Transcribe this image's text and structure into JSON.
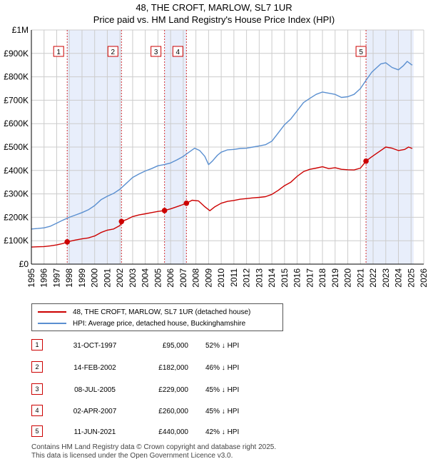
{
  "title": "48, THE CROFT, MARLOW, SL7 1UR",
  "subtitle": "Price paid vs. HM Land Registry's House Price Index (HPI)",
  "colors": {
    "property": "#cc0000",
    "hpi": "#5a8fd0",
    "shade": "#e8eefb",
    "grid": "#cccccc"
  },
  "chart_data": {
    "type": "line",
    "xlim": [
      1995,
      2026
    ],
    "ylim": [
      0,
      1000000
    ],
    "y_ticks": [
      0,
      100000,
      200000,
      300000,
      400000,
      500000,
      600000,
      700000,
      800000,
      900000,
      1000000
    ],
    "y_tick_labels": [
      "£0",
      "£100K",
      "£200K",
      "£300K",
      "£400K",
      "£500K",
      "£600K",
      "£700K",
      "£800K",
      "£900K",
      "£1M"
    ],
    "x_tick_labels": [
      "1995",
      "1996",
      "1997",
      "1998",
      "1999",
      "2000",
      "2001",
      "2002",
      "2003",
      "2004",
      "2005",
      "2006",
      "2007",
      "2008",
      "2009",
      "2010",
      "2011",
      "2012",
      "2013",
      "2014",
      "2015",
      "2016",
      "2017",
      "2018",
      "2019",
      "2020",
      "2021",
      "2022",
      "2023",
      "2024",
      "2025",
      "2026"
    ],
    "grid": true,
    "shaded_ranges": [
      [
        1997.83,
        2002.12
      ],
      [
        2005.52,
        2007.25
      ],
      [
        2021.44,
        2025.2
      ]
    ],
    "series": [
      {
        "name": "48, THE CROFT, MARLOW, SL7 1UR (detached house)",
        "x": [
          1995.0,
          1995.5,
          1996.0,
          1996.5,
          1997.0,
          1997.5,
          1997.83,
          1998.5,
          1999.0,
          1999.5,
          2000.0,
          2000.5,
          2001.0,
          2001.5,
          2002.0,
          2002.12,
          2002.5,
          2003.0,
          2003.5,
          2004.0,
          2004.5,
          2005.0,
          2005.52,
          2006.0,
          2006.5,
          2007.0,
          2007.25,
          2007.7,
          2008.2,
          2008.7,
          2009.1,
          2009.5,
          2010.0,
          2010.5,
          2011.0,
          2011.5,
          2012.0,
          2012.5,
          2013.0,
          2013.5,
          2014.0,
          2014.5,
          2015.0,
          2015.5,
          2016.0,
          2016.5,
          2017.0,
          2017.5,
          2018.0,
          2018.5,
          2019.0,
          2019.5,
          2020.0,
          2020.5,
          2021.0,
          2021.44,
          2021.8,
          2022.2,
          2022.6,
          2023.0,
          2023.5,
          2024.0,
          2024.5,
          2024.8,
          2025.1
        ],
        "y": [
          73000,
          74000,
          75000,
          78000,
          82000,
          88000,
          95000,
          103000,
          108000,
          112000,
          120000,
          135000,
          145000,
          150000,
          165000,
          182000,
          190000,
          203000,
          210000,
          215000,
          220000,
          225000,
          229000,
          236000,
          245000,
          255000,
          260000,
          273000,
          270000,
          245000,
          228000,
          245000,
          260000,
          268000,
          272000,
          277000,
          280000,
          283000,
          285000,
          288000,
          298000,
          315000,
          335000,
          350000,
          375000,
          395000,
          405000,
          410000,
          416000,
          408000,
          412000,
          405000,
          403000,
          402000,
          410000,
          440000,
          455000,
          470000,
          485000,
          500000,
          495000,
          485000,
          490000,
          500000,
          494000
        ]
      },
      {
        "name": "HPI: Average price, detached house, Buckinghamshire",
        "x": [
          1995.0,
          1995.5,
          1996.0,
          1996.5,
          1997.0,
          1997.5,
          1998.0,
          1998.5,
          1999.0,
          1999.5,
          2000.0,
          2000.5,
          2001.0,
          2001.5,
          2002.0,
          2002.5,
          2003.0,
          2003.5,
          2004.0,
          2004.5,
          2005.0,
          2005.5,
          2006.0,
          2006.5,
          2007.0,
          2007.5,
          2007.9,
          2008.3,
          2008.7,
          2009.0,
          2009.3,
          2009.7,
          2010.0,
          2010.5,
          2011.0,
          2011.5,
          2012.0,
          2012.5,
          2013.0,
          2013.5,
          2014.0,
          2014.5,
          2015.0,
          2015.5,
          2016.0,
          2016.5,
          2017.0,
          2017.5,
          2018.0,
          2018.5,
          2019.0,
          2019.5,
          2020.0,
          2020.5,
          2021.0,
          2021.5,
          2021.9,
          2022.3,
          2022.6,
          2023.0,
          2023.5,
          2024.0,
          2024.4,
          2024.7,
          2025.0,
          2025.1
        ],
        "y": [
          150000,
          152000,
          155000,
          162000,
          175000,
          188000,
          200000,
          210000,
          220000,
          232000,
          250000,
          275000,
          290000,
          302000,
          320000,
          345000,
          370000,
          385000,
          398000,
          408000,
          420000,
          425000,
          432000,
          445000,
          460000,
          480000,
          495000,
          485000,
          460000,
          425000,
          440000,
          465000,
          478000,
          488000,
          490000,
          494000,
          495000,
          500000,
          505000,
          510000,
          525000,
          560000,
          595000,
          620000,
          655000,
          690000,
          708000,
          725000,
          735000,
          730000,
          725000,
          712000,
          715000,
          725000,
          750000,
          790000,
          820000,
          840000,
          855000,
          860000,
          840000,
          830000,
          848000,
          866000,
          853000,
          850000
        ]
      }
    ],
    "sales": [
      {
        "label": "1",
        "x": 1997.83,
        "y": 95000,
        "date": "31-OCT-1997",
        "price": "£95,000",
        "hpi": "52% ↓ HPI"
      },
      {
        "label": "2",
        "x": 2002.12,
        "y": 182000,
        "date": "14-FEB-2002",
        "price": "£182,000",
        "hpi": "46% ↓ HPI"
      },
      {
        "label": "3",
        "x": 2005.52,
        "y": 229000,
        "date": "08-JUL-2005",
        "price": "£229,000",
        "hpi": "45% ↓ HPI"
      },
      {
        "label": "4",
        "x": 2007.25,
        "y": 260000,
        "date": "02-APR-2007",
        "price": "£260,000",
        "hpi": "45% ↓ HPI"
      },
      {
        "label": "5",
        "x": 2021.44,
        "y": 440000,
        "date": "11-JUN-2021",
        "price": "£440,000",
        "hpi": "42% ↓ HPI"
      }
    ]
  },
  "footer": {
    "line1": "Contains HM Land Registry data © Crown copyright and database right 2025.",
    "line2": "This data is licensed under the Open Government Licence v3.0."
  }
}
